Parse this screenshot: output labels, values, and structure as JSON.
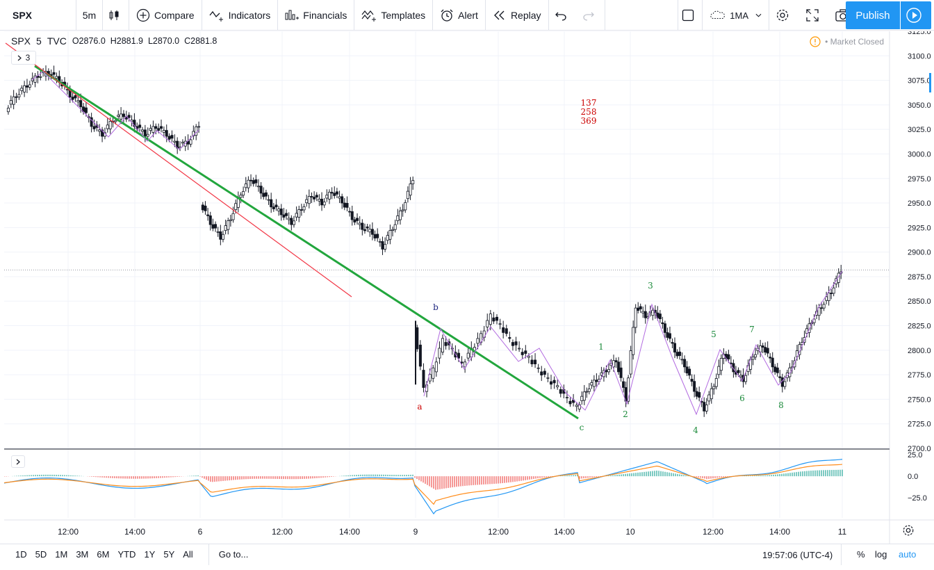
{
  "toolbar": {
    "symbol": "SPX",
    "interval": "5m",
    "compare_label": "Compare",
    "indicators_label": "Indicators",
    "financials_label": "Financials",
    "templates_label": "Templates",
    "alert_label": "Alert",
    "replay_label": "Replay",
    "layout_label": "1MA",
    "publish_label": "Publish"
  },
  "legend": {
    "symbol": "SPX",
    "interval": "5",
    "exchange": "TVC",
    "open_label": "O",
    "open": "2876.0",
    "high_label": "H",
    "high": "2881.9",
    "low_label": "L",
    "low": "2870.0",
    "close_label": "C",
    "close": "2881.8",
    "indicator_count": "3",
    "market_status": "Market Closed"
  },
  "price_axis": {
    "labels": [
      "3125.0",
      "3100.0",
      "3075.0",
      "3050.0",
      "3025.0",
      "3000.0",
      "2975.0",
      "2950.0",
      "2925.0",
      "2900.0",
      "2875.0",
      "2850.0",
      "2825.0",
      "2800.0",
      "2775.0",
      "2750.0",
      "2725.0",
      "2700.0"
    ],
    "indicator_labels": [
      "25.0",
      "0.0",
      "−25.0"
    ]
  },
  "time_axis": {
    "labels": [
      "12:00",
      "14:00",
      "6",
      "12:00",
      "14:00",
      "9",
      "12:00",
      "14:00",
      "10",
      "12:00",
      "14:00",
      "11"
    ]
  },
  "annotations": {
    "fib_numbers": [
      "137",
      "258",
      "369"
    ],
    "wave_a": "a",
    "wave_b": "b",
    "wave_c": "c",
    "wave_1": "1",
    "wave_2": "2",
    "wave_3": "3",
    "wave_4": "4",
    "wave_5": "5",
    "wave_6": "6",
    "wave_7": "7",
    "wave_8": "8"
  },
  "colors": {
    "up": "#131722",
    "down": "#131722",
    "green_trend": "#22a63d",
    "red_trend": "#f23645",
    "wave_line": "#b26be0",
    "macd": "#2196f3",
    "signal": "#ff8c1a",
    "hist_pos": "#26a69a",
    "hist_neg": "#ef5350",
    "accent": "#2196f3",
    "label_red": "#cc0000",
    "label_green": "#1b8a3a",
    "label_blue": "#1a237e"
  },
  "chart_data": {
    "type": "candlestick",
    "title": "SPX, 5, TVC",
    "ylim": [
      2700,
      3125
    ],
    "segments": [
      {
        "day": "5",
        "points": [
          [
            3045,
            3060
          ],
          [
            3060,
            3070
          ],
          [
            3070,
            3080
          ],
          [
            3080,
            3083
          ],
          [
            3083,
            3075
          ],
          [
            3075,
            3060
          ],
          [
            3060,
            3050
          ],
          [
            3050,
            3030
          ],
          [
            3030,
            3020
          ],
          [
            3020,
            3035
          ],
          [
            3035,
            3040
          ],
          [
            3040,
            3030
          ],
          [
            3030,
            3020
          ],
          [
            3020,
            3028
          ],
          [
            3028,
            3020
          ],
          [
            3020,
            3008
          ],
          [
            3008,
            3012
          ],
          [
            3012,
            3030
          ]
        ]
      },
      {
        "day": "6",
        "points": [
          [
            2950,
            2930
          ],
          [
            2930,
            2915
          ],
          [
            2915,
            2935
          ],
          [
            2935,
            2960
          ],
          [
            2960,
            2975
          ],
          [
            2975,
            2962
          ],
          [
            2962,
            2948
          ],
          [
            2948,
            2940
          ],
          [
            2940,
            2930
          ],
          [
            2930,
            2945
          ],
          [
            2945,
            2958
          ],
          [
            2958,
            2950
          ],
          [
            2950,
            2962
          ],
          [
            2962,
            2952
          ],
          [
            2952,
            2935
          ],
          [
            2935,
            2925
          ],
          [
            2925,
            2920
          ],
          [
            2920,
            2905
          ],
          [
            2905,
            2925
          ],
          [
            2925,
            2945
          ],
          [
            2945,
            2975
          ]
        ]
      },
      {
        "day": "9",
        "points": [
          [
            2825,
            2760
          ],
          [
            2760,
            2780
          ],
          [
            2780,
            2810
          ],
          [
            2810,
            2800
          ],
          [
            2800,
            2785
          ],
          [
            2785,
            2800
          ],
          [
            2800,
            2815
          ],
          [
            2815,
            2835
          ],
          [
            2835,
            2825
          ],
          [
            2825,
            2810
          ],
          [
            2810,
            2800
          ],
          [
            2800,
            2792
          ],
          [
            2792,
            2780
          ],
          [
            2780,
            2770
          ],
          [
            2770,
            2762
          ],
          [
            2762,
            2750
          ],
          [
            2750,
            2742
          ]
        ]
      },
      {
        "day": "10",
        "points": [
          [
            2742,
            2760
          ],
          [
            2760,
            2770
          ],
          [
            2770,
            2780
          ],
          [
            2780,
            2790
          ],
          [
            2790,
            2750
          ],
          [
            2750,
            2845
          ],
          [
            2845,
            2835
          ],
          [
            2835,
            2840
          ],
          [
            2840,
            2820
          ],
          [
            2820,
            2800
          ],
          [
            2800,
            2785
          ],
          [
            2785,
            2760
          ],
          [
            2760,
            2740
          ],
          [
            2740,
            2765
          ],
          [
            2765,
            2798
          ],
          [
            2798,
            2780
          ],
          [
            2780,
            2770
          ],
          [
            2770,
            2795
          ],
          [
            2795,
            2805
          ],
          [
            2805,
            2785
          ],
          [
            2785,
            2765
          ],
          [
            2765,
            2785
          ],
          [
            2785,
            2810
          ],
          [
            2810,
            2830
          ],
          [
            2830,
            2845
          ],
          [
            2845,
            2860
          ],
          [
            2860,
            2882
          ]
        ]
      }
    ],
    "trend_lines": [
      {
        "name": "green",
        "from": [
          "5 10:30",
          3088
        ],
        "to": [
          "9 14:10",
          2730
        ]
      },
      {
        "name": "red",
        "from": [
          "5 09:30",
          3110
        ],
        "to": [
          "6 14:00",
          2855
        ]
      }
    ],
    "indicator": {
      "type": "macd",
      "ylim": [
        -50,
        30
      ],
      "ticks": [
        25,
        0,
        -25
      ]
    }
  }
}
